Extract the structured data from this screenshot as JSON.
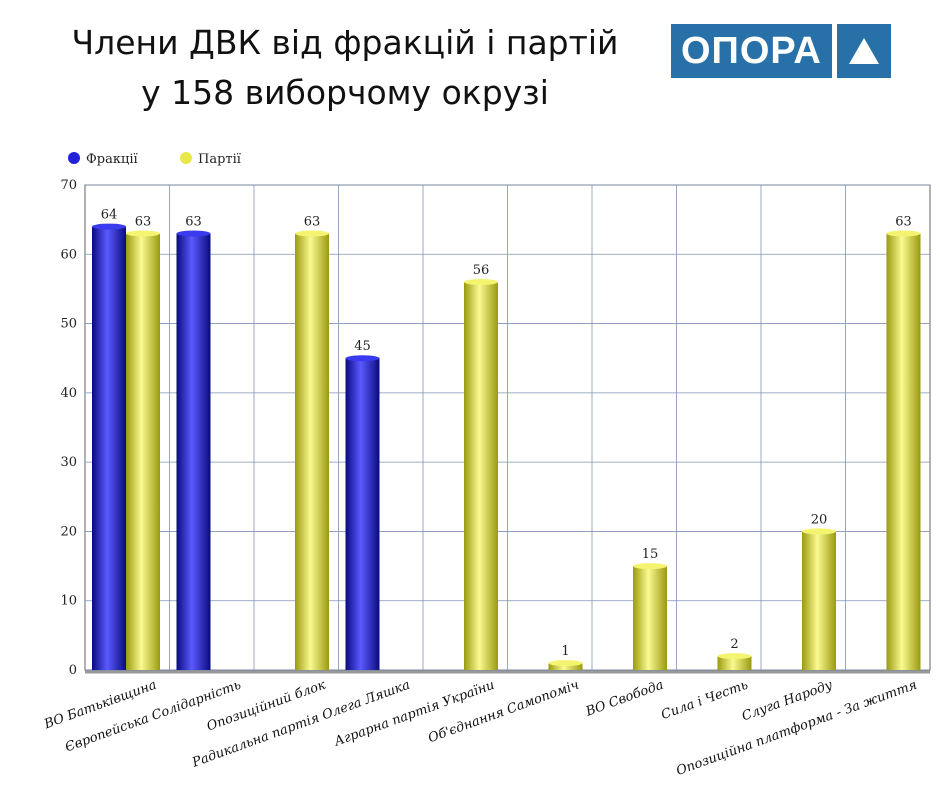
{
  "title_line1": "Члени ДВК  від фракцій і партій",
  "title_line2": "у 158 виборчому окрузі",
  "logo_text": "ОПОРА",
  "colors": {
    "fractions": "#2222cc",
    "parties": "#e0e050",
    "grid": "#7f93b5",
    "logo": "#2870a8"
  },
  "chart_data": {
    "type": "bar",
    "title": "Члени ДВК від фракцій і партій у 158 виборчому окрузі",
    "xlabel": "",
    "ylabel": "",
    "ylim": [
      0,
      70
    ],
    "yticks": [
      0,
      10,
      20,
      30,
      40,
      50,
      60,
      70
    ],
    "grid": true,
    "legend_position": "top-left",
    "categories": [
      "ВО Батьківщина",
      "Європейська Солідарність",
      "Опозиційний блок",
      "Радикальна партія Олега Ляшка",
      "Аграрна партія України",
      "Об'єднання Самопоміч",
      "ВО Свобода",
      "Сила і Честь",
      "Слуга Народу",
      "Опозиційна платформа - За життя"
    ],
    "series": [
      {
        "name": "Фракції",
        "values": [
          64,
          63,
          null,
          45,
          null,
          null,
          null,
          null,
          null,
          null
        ]
      },
      {
        "name": "Партії",
        "values": [
          63,
          null,
          63,
          null,
          56,
          1,
          15,
          2,
          20,
          63
        ]
      }
    ]
  }
}
